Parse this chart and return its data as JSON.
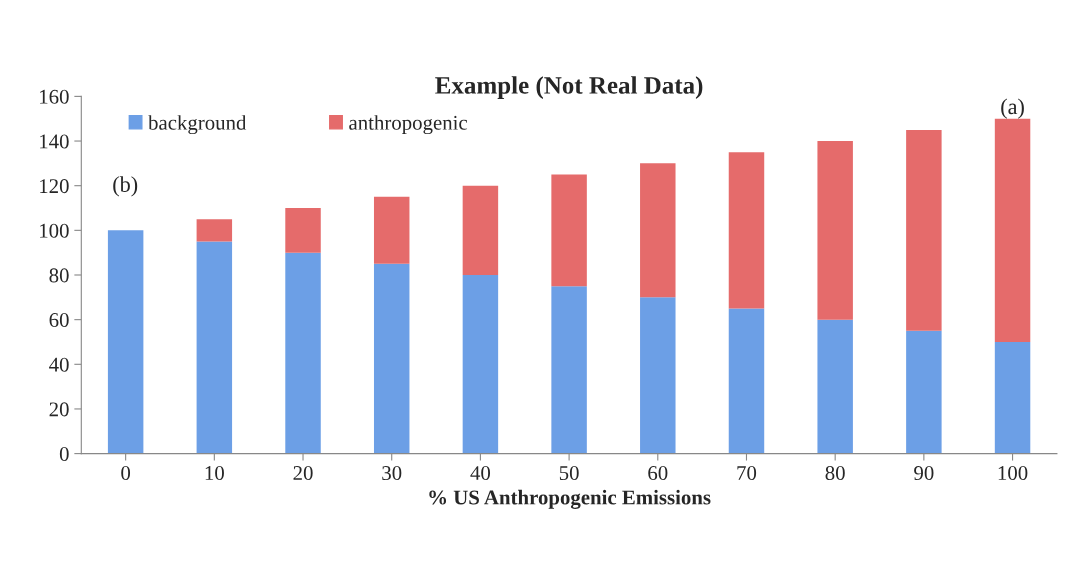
{
  "chart_data": {
    "type": "bar",
    "title": "Example (Not Real Data)",
    "xlabel": "% US Anthropogenic Emissions",
    "categories": [
      "0",
      "10",
      "20",
      "30",
      "40",
      "50",
      "60",
      "70",
      "80",
      "90",
      "100"
    ],
    "stacked": true,
    "series": [
      {
        "name": "background",
        "color": "#6c9fe6",
        "values": [
          100,
          95,
          90,
          85,
          80,
          75,
          70,
          65,
          60,
          55,
          50
        ]
      },
      {
        "name": "anthropogenic",
        "color": "#e56b6b",
        "values": [
          null,
          10,
          20,
          30,
          40,
          50,
          60,
          70,
          80,
          90,
          100
        ]
      }
    ],
    "ylim": [
      0,
      160
    ],
    "yticks": [
      0,
      20,
      40,
      60,
      80,
      100,
      120,
      140,
      160
    ],
    "grid": false,
    "legend": "top left",
    "annotations": [
      "(b)",
      {
        "text": "(a)",
        "x": "100",
        "y": 150
      }
    ]
  }
}
